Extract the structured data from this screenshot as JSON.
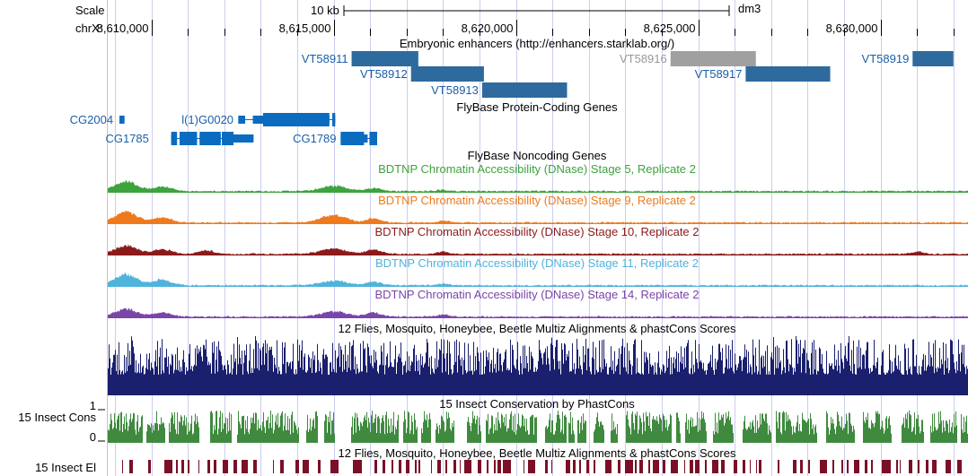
{
  "colors": {
    "enhancer": "#2e6a9e",
    "enhancer_dim": "#a0a0a0",
    "gene": "#0b6bbf",
    "gene_label": "#1a5fa8",
    "noncoding": "#4a8fd4",
    "stage5": "#3da33d",
    "stage9": "#ee7a1c",
    "stage10": "#8b1a1a",
    "stage11": "#4fb3dc",
    "stage14": "#7a45a8",
    "multiz": "#1a1f6e",
    "phastcons": "#3f8a3f",
    "elements": "#7a1027",
    "gridline": "#ccccf0",
    "text": "#000000"
  },
  "ruler": {
    "scale_label": "Scale",
    "chrom_label": "chrX:",
    "scale_bar_label": "10 kb",
    "assembly": "dm3",
    "ticks": [
      {
        "pos": 8610000,
        "label": "8,610,000"
      },
      {
        "pos": 8615000,
        "label": "8,615,000"
      },
      {
        "pos": 8620000,
        "label": "8,620,000"
      },
      {
        "pos": 8625000,
        "label": "8,625,000"
      },
      {
        "pos": 8630000,
        "label": "8,630,000"
      }
    ]
  },
  "enhancers": {
    "title": "Embryonic enhancers (http://enhancers.starklab.org/)",
    "items": [
      {
        "name": "VT58911",
        "start": 8615490,
        "end": 8617320,
        "row": 0,
        "dim": false
      },
      {
        "name": "VT58912",
        "start": 8617120,
        "end": 8619120,
        "row": 1,
        "dim": false
      },
      {
        "name": "VT58913",
        "start": 8619070,
        "end": 8621400,
        "row": 2,
        "dim": false
      },
      {
        "name": "VT58916",
        "start": 8624240,
        "end": 8626580,
        "row": 0,
        "dim": true
      },
      {
        "name": "VT58917",
        "start": 8626300,
        "end": 8628620,
        "row": 1,
        "dim": false
      },
      {
        "name": "VT58919",
        "start": 8630880,
        "end": 8632000,
        "row": 0,
        "dim": false
      }
    ]
  },
  "genes": {
    "title": "FlyBase Protein-Coding Genes",
    "items": [
      {
        "name": "CG2004",
        "row": 0,
        "label_end": 8608950,
        "start": 8609120,
        "end": 8609260,
        "exons": [
          [
            8609120,
            8609260
          ]
        ],
        "thick": []
      },
      {
        "name": "l(1)G0020",
        "row": 0,
        "label_end": 8612250,
        "start": 8612380,
        "end": 8615040,
        "exons": [
          [
            8612380,
            8612570
          ],
          [
            8612780,
            8614880
          ],
          [
            8614960,
            8615040
          ]
        ],
        "thick": [
          [
            8613060,
            8614880
          ],
          [
            8614960,
            8615040
          ]
        ]
      },
      {
        "name": "CG1785",
        "row": 1,
        "label_end": 8609930,
        "start": 8610540,
        "end": 8612800,
        "exons": [
          [
            8610540,
            8610700
          ],
          [
            8610770,
            8611250
          ],
          [
            8611320,
            8611900
          ],
          [
            8611930,
            8612800
          ]
        ],
        "thick": [
          [
            8610540,
            8610700
          ],
          [
            8610770,
            8611250
          ],
          [
            8611320,
            8611900
          ],
          [
            8611930,
            8612250
          ]
        ]
      },
      {
        "name": "CG1789",
        "row": 1,
        "label_end": 8615070,
        "start": 8615190,
        "end": 8616190,
        "exons": [
          [
            8615190,
            8615930
          ],
          [
            8615980,
            8616190
          ]
        ],
        "thick": [
          [
            8615190,
            8615830
          ],
          [
            8615980,
            8616190
          ]
        ]
      }
    ]
  },
  "noncoding": {
    "title": "FlyBase Noncoding Genes"
  },
  "dnase": [
    {
      "id": "stage5",
      "title": "BDTNP Chromatin Accessibility (DNase) Stage 5, Replicate 2",
      "peaks": [
        [
          8609300,
          600,
          0.85
        ],
        [
          8610300,
          500,
          0.4
        ],
        [
          8615000,
          700,
          0.45
        ],
        [
          8616100,
          400,
          0.25
        ],
        [
          8618000,
          300,
          0.12
        ]
      ]
    },
    {
      "id": "stage9",
      "title": "BDTNP Chromatin Accessibility (DNase) Stage 9, Replicate 2",
      "peaks": [
        [
          8609300,
          600,
          0.9
        ],
        [
          8610300,
          500,
          0.45
        ],
        [
          8615000,
          700,
          0.65
        ],
        [
          8616100,
          400,
          0.35
        ],
        [
          8618000,
          300,
          0.15
        ]
      ]
    },
    {
      "id": "stage10",
      "title": "BDTNP Chromatin Accessibility (DNase) Stage 10, Replicate 2",
      "peaks": [
        [
          8609300,
          600,
          0.7
        ],
        [
          8610300,
          500,
          0.4
        ],
        [
          8611500,
          400,
          0.3
        ],
        [
          8615000,
          700,
          0.45
        ],
        [
          8616100,
          400,
          0.35
        ],
        [
          8618000,
          300,
          0.2
        ],
        [
          8631000,
          300,
          0.2
        ]
      ]
    },
    {
      "id": "stage11",
      "title": "BDTNP Chromatin Accessibility (DNase) Stage 11, Replicate 2",
      "peaks": [
        [
          8609300,
          600,
          0.95
        ],
        [
          8610300,
          500,
          0.5
        ],
        [
          8615000,
          700,
          0.4
        ],
        [
          8616100,
          400,
          0.3
        ],
        [
          8618000,
          300,
          0.15
        ]
      ]
    },
    {
      "id": "stage14",
      "title": "BDTNP Chromatin Accessibility (DNase) Stage 14, Replicate 2",
      "peaks": [
        [
          8609300,
          600,
          0.65
        ],
        [
          8610300,
          500,
          0.35
        ],
        [
          8615000,
          700,
          0.45
        ],
        [
          8616100,
          400,
          0.35
        ],
        [
          8618000,
          300,
          0.2
        ]
      ]
    }
  ],
  "multiz": {
    "title": "12 Flies, Mosquito, Honeybee, Beetle Multiz Alignments & phastCons Scores"
  },
  "phastcons": {
    "title": "15 Insect Conservation by PhastCons",
    "side_label": "15 Insect Cons",
    "ymax_label": "1",
    "ymin_label": "0"
  },
  "elements": {
    "title": "12 Flies, Mosquito, Honeybee, Beetle Multiz Alignments & phastCons Scores",
    "side_label": "15 Insect El"
  }
}
